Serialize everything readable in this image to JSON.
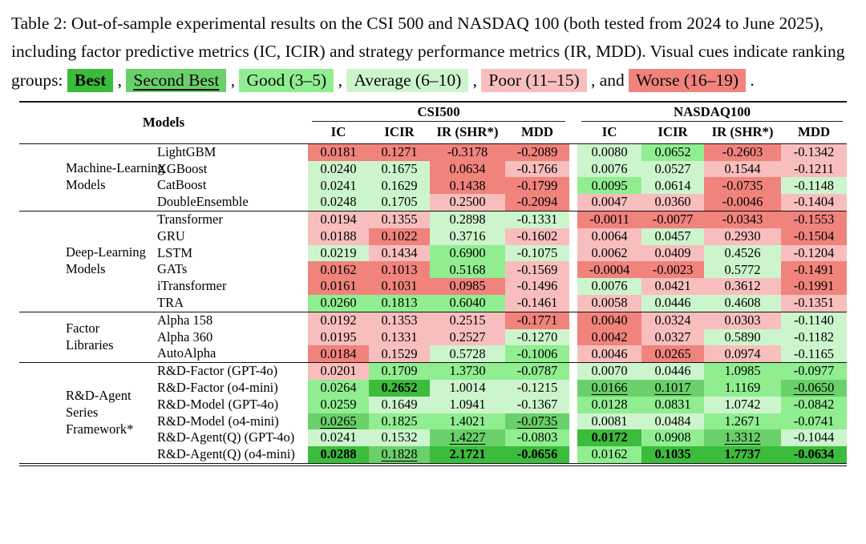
{
  "colors": {
    "best": "#3cbc3c",
    "second": "#6ad06a",
    "good": "#90ee90",
    "avg": "#cdf5cd",
    "poor": "#f8bebe",
    "worse": "#f0837c"
  },
  "caption": {
    "text_before_legend": "Table 2: Out-of-sample experimental results on the CSI 500 and NASDAQ 100 (both tested from 2024 to June 2025), including factor predictive metrics (IC, ICIR) and strategy performance metrics (IR, MDD). Visual cues indicate ranking groups: ",
    "legend": [
      {
        "label": "Best",
        "group": "best",
        "sep_after": " , "
      },
      {
        "label": "Second Best",
        "group": "second",
        "sep_after": " , "
      },
      {
        "label": "Good (3–5)",
        "group": "good",
        "sep_after": " , "
      },
      {
        "label": "Average (6–10)",
        "group": "avg",
        "sep_after": " , "
      },
      {
        "label": "Poor (11–15)",
        "group": "poor",
        "sep_after": " , and "
      },
      {
        "label": "Worse (16–19)",
        "group": "worse",
        "sep_after": " ."
      }
    ]
  },
  "table": {
    "models_header": "Models",
    "groups": [
      "CSI500",
      "NASDAQ100"
    ],
    "metrics": [
      "IC",
      "ICIR",
      "IR (SHR*)",
      "MDD"
    ],
    "sections": [
      {
        "category": "Machine-Learning\nModels",
        "rows": [
          {
            "model": "LightGBM",
            "csi500": [
              {
                "v": "0.0181",
                "g": "worse"
              },
              {
                "v": "0.1271",
                "g": "worse"
              },
              {
                "v": "-0.3178",
                "g": "worse"
              },
              {
                "v": "-0.2089",
                "g": "worse"
              }
            ],
            "nasdaq100": [
              {
                "v": "0.0080",
                "g": "avg"
              },
              {
                "v": "0.0652",
                "g": "good"
              },
              {
                "v": "-0.2603",
                "g": "worse"
              },
              {
                "v": "-0.1342",
                "g": "poor"
              }
            ]
          },
          {
            "model": "XGBoost",
            "csi500": [
              {
                "v": "0.0240",
                "g": "avg"
              },
              {
                "v": "0.1675",
                "g": "avg"
              },
              {
                "v": "0.0634",
                "g": "worse"
              },
              {
                "v": "-0.1766",
                "g": "poor"
              }
            ],
            "nasdaq100": [
              {
                "v": "0.0076",
                "g": "avg"
              },
              {
                "v": "0.0527",
                "g": "avg"
              },
              {
                "v": "0.1544",
                "g": "poor"
              },
              {
                "v": "-0.1211",
                "g": "poor"
              }
            ]
          },
          {
            "model": "CatBoost",
            "csi500": [
              {
                "v": "0.0241",
                "g": "avg"
              },
              {
                "v": "0.1629",
                "g": "avg"
              },
              {
                "v": "0.1438",
                "g": "worse"
              },
              {
                "v": "-0.1799",
                "g": "worse"
              }
            ],
            "nasdaq100": [
              {
                "v": "0.0095",
                "g": "good"
              },
              {
                "v": "0.0614",
                "g": "avg"
              },
              {
                "v": "-0.0735",
                "g": "worse"
              },
              {
                "v": "-0.1148",
                "g": "avg"
              }
            ]
          },
          {
            "model": "DoubleEnsemble",
            "csi500": [
              {
                "v": "0.0248",
                "g": "avg"
              },
              {
                "v": "0.1705",
                "g": "avg"
              },
              {
                "v": "0.2500",
                "g": "poor"
              },
              {
                "v": "-0.2094",
                "g": "worse"
              }
            ],
            "nasdaq100": [
              {
                "v": "0.0047",
                "g": "poor"
              },
              {
                "v": "0.0360",
                "g": "poor"
              },
              {
                "v": "-0.0046",
                "g": "worse"
              },
              {
                "v": "-0.1404",
                "g": "poor"
              }
            ]
          }
        ]
      },
      {
        "category": "Deep-Learning\nModels",
        "rows": [
          {
            "model": "Transformer",
            "csi500": [
              {
                "v": "0.0194",
                "g": "poor"
              },
              {
                "v": "0.1355",
                "g": "poor"
              },
              {
                "v": "0.2898",
                "g": "avg"
              },
              {
                "v": "-0.1331",
                "g": "avg"
              }
            ],
            "nasdaq100": [
              {
                "v": "-0.0011",
                "g": "worse"
              },
              {
                "v": "-0.0077",
                "g": "worse"
              },
              {
                "v": "-0.0343",
                "g": "worse"
              },
              {
                "v": "-0.1553",
                "g": "worse"
              }
            ]
          },
          {
            "model": "GRU",
            "csi500": [
              {
                "v": "0.0188",
                "g": "poor"
              },
              {
                "v": "0.1022",
                "g": "worse"
              },
              {
                "v": "0.3716",
                "g": "avg"
              },
              {
                "v": "-0.1602",
                "g": "poor"
              }
            ],
            "nasdaq100": [
              {
                "v": "0.0064",
                "g": "poor"
              },
              {
                "v": "0.0457",
                "g": "avg"
              },
              {
                "v": "0.2930",
                "g": "poor"
              },
              {
                "v": "-0.1504",
                "g": "worse"
              }
            ]
          },
          {
            "model": "LSTM",
            "csi500": [
              {
                "v": "0.0219",
                "g": "avg"
              },
              {
                "v": "0.1434",
                "g": "poor"
              },
              {
                "v": "0.6900",
                "g": "good"
              },
              {
                "v": "-0.1075",
                "g": "avg"
              }
            ],
            "nasdaq100": [
              {
                "v": "0.0062",
                "g": "poor"
              },
              {
                "v": "0.0409",
                "g": "poor"
              },
              {
                "v": "0.4526",
                "g": "avg"
              },
              {
                "v": "-0.1204",
                "g": "poor"
              }
            ]
          },
          {
            "model": "GATs",
            "csi500": [
              {
                "v": "0.0162",
                "g": "worse"
              },
              {
                "v": "0.1013",
                "g": "worse"
              },
              {
                "v": "0.5168",
                "g": "good"
              },
              {
                "v": "-0.1569",
                "g": "poor"
              }
            ],
            "nasdaq100": [
              {
                "v": "-0.0004",
                "g": "worse"
              },
              {
                "v": "-0.0023",
                "g": "worse"
              },
              {
                "v": "0.5772",
                "g": "avg"
              },
              {
                "v": "-0.1491",
                "g": "worse"
              }
            ]
          },
          {
            "model": "iTransformer",
            "csi500": [
              {
                "v": "0.0161",
                "g": "worse"
              },
              {
                "v": "0.1031",
                "g": "worse"
              },
              {
                "v": "0.0985",
                "g": "worse"
              },
              {
                "v": "-0.1496",
                "g": "poor"
              }
            ],
            "nasdaq100": [
              {
                "v": "0.0076",
                "g": "avg"
              },
              {
                "v": "0.0421",
                "g": "poor"
              },
              {
                "v": "0.3612",
                "g": "poor"
              },
              {
                "v": "-0.1991",
                "g": "worse"
              }
            ]
          },
          {
            "model": "TRA",
            "csi500": [
              {
                "v": "0.0260",
                "g": "good"
              },
              {
                "v": "0.1813",
                "g": "good"
              },
              {
                "v": "0.6040",
                "g": "good"
              },
              {
                "v": "-0.1461",
                "g": "poor"
              }
            ],
            "nasdaq100": [
              {
                "v": "0.0058",
                "g": "poor"
              },
              {
                "v": "0.0446",
                "g": "avg"
              },
              {
                "v": "0.4608",
                "g": "avg"
              },
              {
                "v": "-0.1351",
                "g": "poor"
              }
            ]
          }
        ]
      },
      {
        "category": "Factor\nLibraries",
        "rows": [
          {
            "model": "Alpha 158",
            "csi500": [
              {
                "v": "0.0192",
                "g": "poor"
              },
              {
                "v": "0.1353",
                "g": "poor"
              },
              {
                "v": "0.2515",
                "g": "poor"
              },
              {
                "v": "-0.1771",
                "g": "worse"
              }
            ],
            "nasdaq100": [
              {
                "v": "0.0040",
                "g": "worse"
              },
              {
                "v": "0.0324",
                "g": "poor"
              },
              {
                "v": "0.0303",
                "g": "poor"
              },
              {
                "v": "-0.1140",
                "g": "avg"
              }
            ]
          },
          {
            "model": "Alpha 360",
            "csi500": [
              {
                "v": "0.0195",
                "g": "poor"
              },
              {
                "v": "0.1331",
                "g": "poor"
              },
              {
                "v": "0.2527",
                "g": "poor"
              },
              {
                "v": "-0.1270",
                "g": "avg"
              }
            ],
            "nasdaq100": [
              {
                "v": "0.0042",
                "g": "worse"
              },
              {
                "v": "0.0327",
                "g": "poor"
              },
              {
                "v": "0.5890",
                "g": "avg"
              },
              {
                "v": "-0.1182",
                "g": "avg"
              }
            ]
          },
          {
            "model": "AutoAlpha",
            "csi500": [
              {
                "v": "0.0184",
                "g": "worse"
              },
              {
                "v": "0.1529",
                "g": "poor"
              },
              {
                "v": "0.5728",
                "g": "avg"
              },
              {
                "v": "-0.1006",
                "g": "good"
              }
            ],
            "nasdaq100": [
              {
                "v": "0.0046",
                "g": "poor"
              },
              {
                "v": "0.0265",
                "g": "worse"
              },
              {
                "v": "0.0974",
                "g": "poor"
              },
              {
                "v": "-0.1165",
                "g": "avg"
              }
            ]
          }
        ]
      },
      {
        "category": "R&D-Agent Series\nFramework*",
        "rows": [
          {
            "model": "R&D-Factor (GPT-4o)",
            "csi500": [
              {
                "v": "0.0201",
                "g": "poor"
              },
              {
                "v": "0.1709",
                "g": "good"
              },
              {
                "v": "1.3730",
                "g": "good"
              },
              {
                "v": "-0.0787",
                "g": "good"
              }
            ],
            "nasdaq100": [
              {
                "v": "0.0070",
                "g": "avg"
              },
              {
                "v": "0.0446",
                "g": "avg"
              },
              {
                "v": "1.0985",
                "g": "good"
              },
              {
                "v": "-0.0977",
                "g": "good"
              }
            ]
          },
          {
            "model": "R&D-Factor (o4-mini)",
            "csi500": [
              {
                "v": "0.0264",
                "g": "good"
              },
              {
                "v": "0.2652",
                "g": "best",
                "b": true
              },
              {
                "v": "1.0014",
                "g": "avg"
              },
              {
                "v": "-0.1215",
                "g": "avg"
              }
            ],
            "nasdaq100": [
              {
                "v": "0.0166",
                "g": "second",
                "u": true
              },
              {
                "v": "0.1017",
                "g": "second",
                "u": true
              },
              {
                "v": "1.1169",
                "g": "good"
              },
              {
                "v": "-0.0650",
                "g": "second",
                "u": true
              }
            ]
          },
          {
            "model": "R&D-Model (GPT-4o)",
            "csi500": [
              {
                "v": "0.0259",
                "g": "good"
              },
              {
                "v": "0.1649",
                "g": "avg"
              },
              {
                "v": "1.0941",
                "g": "avg"
              },
              {
                "v": "-0.1367",
                "g": "avg"
              }
            ],
            "nasdaq100": [
              {
                "v": "0.0128",
                "g": "good"
              },
              {
                "v": "0.0831",
                "g": "good"
              },
              {
                "v": "1.0742",
                "g": "avg"
              },
              {
                "v": "-0.0842",
                "g": "good"
              }
            ]
          },
          {
            "model": "R&D-Model (o4-mini)",
            "csi500": [
              {
                "v": "0.0265",
                "g": "second",
                "u": true
              },
              {
                "v": "0.1825",
                "g": "good"
              },
              {
                "v": "1.4021",
                "g": "good"
              },
              {
                "v": "-0.0735",
                "g": "second",
                "u": true
              }
            ],
            "nasdaq100": [
              {
                "v": "0.0081",
                "g": "avg"
              },
              {
                "v": "0.0484",
                "g": "avg"
              },
              {
                "v": "1.2671",
                "g": "good"
              },
              {
                "v": "-0.0741",
                "g": "good"
              }
            ]
          },
          {
            "model": "R&D-Agent(Q) (GPT-4o)",
            "csi500": [
              {
                "v": "0.0241",
                "g": "avg"
              },
              {
                "v": "0.1532",
                "g": "avg"
              },
              {
                "v": "1.4227",
                "g": "second",
                "u": true
              },
              {
                "v": "-0.0803",
                "g": "good"
              }
            ],
            "nasdaq100": [
              {
                "v": "0.0172",
                "g": "best",
                "b": true
              },
              {
                "v": "0.0908",
                "g": "good"
              },
              {
                "v": "1.3312",
                "g": "second",
                "u": true
              },
              {
                "v": "-0.1044",
                "g": "avg"
              }
            ]
          },
          {
            "model": "R&D-Agent(Q) (o4-mini)",
            "csi500": [
              {
                "v": "0.0288",
                "g": "best",
                "b": true
              },
              {
                "v": "0.1828",
                "g": "second",
                "u": true
              },
              {
                "v": "2.1721",
                "g": "best",
                "b": true
              },
              {
                "v": "-0.0656",
                "g": "best",
                "b": true
              }
            ],
            "nasdaq100": [
              {
                "v": "0.0162",
                "g": "good"
              },
              {
                "v": "0.1035",
                "g": "best",
                "b": true
              },
              {
                "v": "1.7737",
                "g": "best",
                "b": true
              },
              {
                "v": "-0.0634",
                "g": "best",
                "b": true
              }
            ]
          }
        ]
      }
    ]
  }
}
